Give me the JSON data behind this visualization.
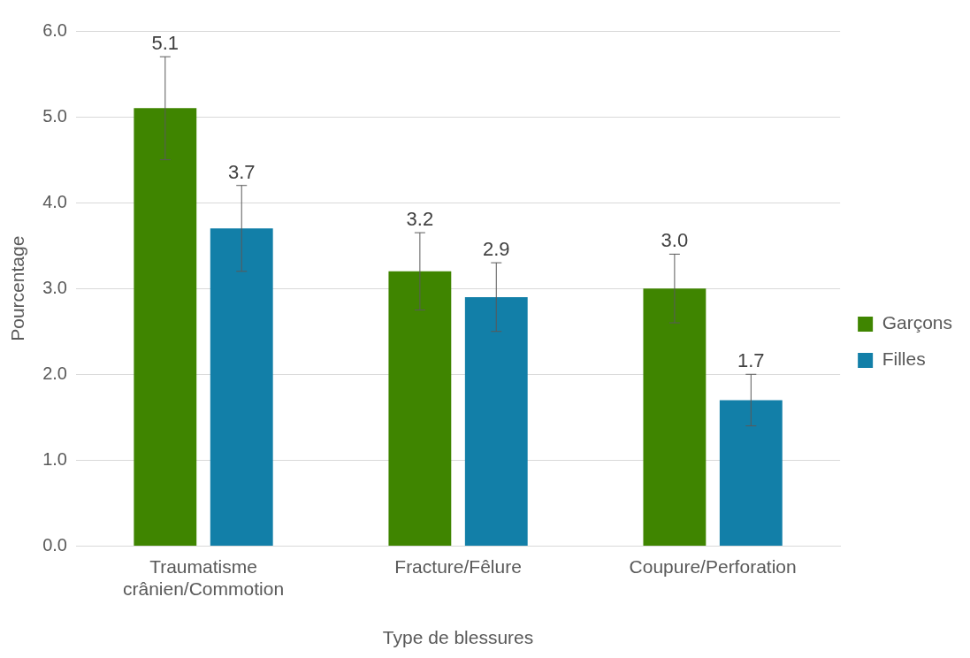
{
  "chart_data": {
    "type": "bar",
    "xlabel": "Type de blessures",
    "ylabel": "Pourcentage",
    "categories": [
      "Traumatisme crânien/Commotion",
      "Fracture/Fêlure",
      "Coupure/Perforation"
    ],
    "series": [
      {
        "name": "Garçons",
        "color": "#3f8500",
        "values": [
          5.1,
          3.2,
          3.0
        ],
        "errors": [
          [
            4.5,
            5.7
          ],
          [
            2.75,
            3.65
          ],
          [
            2.6,
            3.4
          ]
        ],
        "value_labels": [
          "5.1",
          "3.2",
          "3.0"
        ]
      },
      {
        "name": "Filles",
        "color": "#127fa8",
        "values": [
          3.7,
          2.9,
          1.7
        ],
        "errors": [
          [
            3.2,
            4.2
          ],
          [
            2.5,
            3.3
          ],
          [
            1.4,
            2.0
          ]
        ],
        "value_labels": [
          "3.7",
          "2.9",
          "1.7"
        ]
      }
    ],
    "ylim": [
      0,
      6
    ],
    "yticks": [
      {
        "value": 0,
        "label": "0.0"
      },
      {
        "value": 1,
        "label": "1.0"
      },
      {
        "value": 2,
        "label": "2.0"
      },
      {
        "value": 3,
        "label": "3.0"
      },
      {
        "value": 4,
        "label": "4.0"
      },
      {
        "value": 5,
        "label": "5.0"
      },
      {
        "value": 6,
        "label": "6.0"
      }
    ],
    "grid": "y",
    "legend": "right"
  }
}
